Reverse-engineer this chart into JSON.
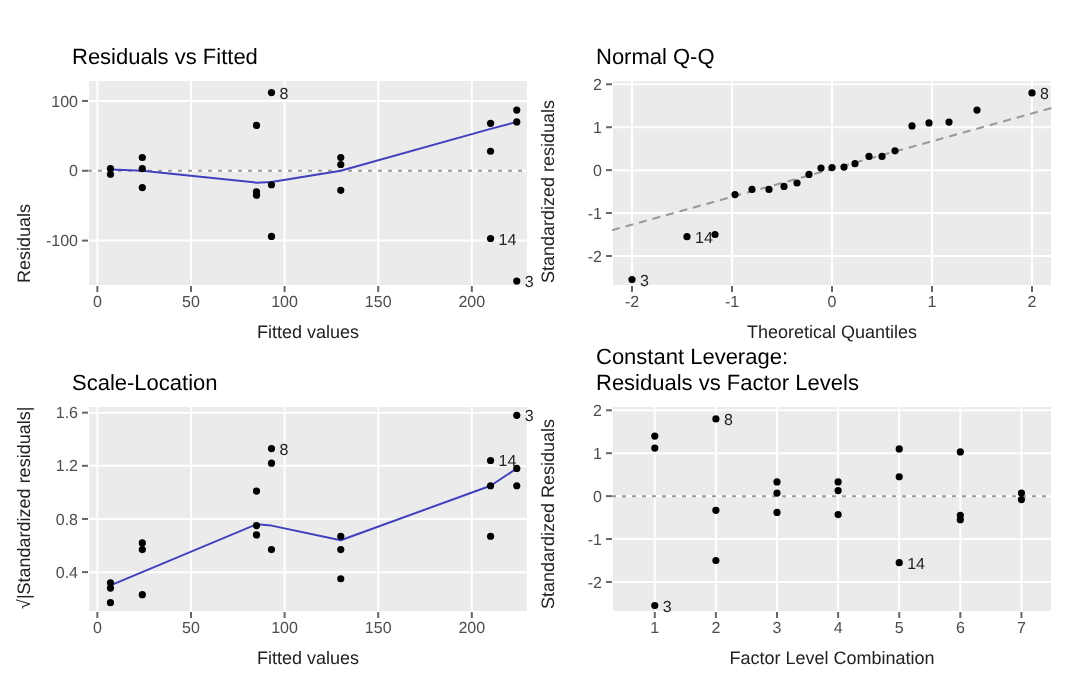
{
  "chart_data": [
    {
      "type": "scatter",
      "title": "Residuals vs Fitted",
      "xlabel": "Fitted values",
      "ylabel": "Residuals",
      "xlim": [
        -5,
        230
      ],
      "xticks": [
        0,
        50,
        100,
        150,
        200
      ],
      "ylim": [
        -165,
        130
      ],
      "yticks": [
        -100,
        0,
        100
      ],
      "grid": true,
      "series": [
        {
          "marker": "circle",
          "color": "#000000",
          "x": [
            7,
            7,
            24,
            24,
            24,
            85,
            85,
            85,
            93,
            93,
            93,
            130,
            130,
            130,
            210,
            210,
            210,
            224,
            224,
            224
          ],
          "values": [
            3,
            -5,
            19,
            3,
            -24,
            65,
            -30,
            -35,
            112,
            -20,
            -94,
            19,
            9,
            -28,
            68,
            28,
            -97,
            87,
            70,
            -158
          ]
        },
        {
          "type": "line",
          "color": "#3f3fbf",
          "x": [
            7,
            24,
            85,
            93,
            130,
            210,
            224
          ],
          "values": [
            2,
            0,
            -17,
            -16,
            0,
            60,
            70
          ]
        }
      ],
      "ref_lines": [
        {
          "axis": "y",
          "value": 0,
          "color": "#999999",
          "line_style": "dotted"
        }
      ],
      "annotations": [
        {
          "text": "8",
          "x": 93,
          "y": 112
        },
        {
          "text": "14",
          "x": 210,
          "y": -97
        },
        {
          "text": "3",
          "x": 224,
          "y": -158
        }
      ]
    },
    {
      "type": "scatter",
      "title": "Normal Q-Q",
      "xlabel": "Theoretical Quantiles",
      "ylabel": "Standardized residuals",
      "xlim": [
        -2.2,
        2.2
      ],
      "xticks": [
        -2,
        -1,
        0,
        1,
        2
      ],
      "ylim": [
        -2.7,
        2.1
      ],
      "yticks": [
        -2,
        -1,
        0,
        1,
        2
      ],
      "grid": true,
      "series": [
        {
          "marker": "circle",
          "color": "#000000",
          "x": [
            -2,
            -1.45,
            -1.17,
            -0.97,
            -0.8,
            -0.63,
            -0.48,
            -0.35,
            -0.23,
            -0.11,
            0,
            0.12,
            0.23,
            0.37,
            0.5,
            0.63,
            0.8,
            0.97,
            1.17,
            1.45,
            2
          ],
          "values": [
            -2.55,
            -1.55,
            -1.5,
            -0.57,
            -0.45,
            -0.45,
            -0.38,
            -0.3,
            -0.1,
            0.05,
            0.06,
            0.07,
            0.15,
            0.32,
            0.32,
            0.45,
            1.03,
            1.1,
            1.12,
            1.4,
            1.8
          ]
        },
        {
          "type": "line",
          "color": "#999999",
          "line_style": "dashed",
          "x": [
            -2.2,
            2.2
          ],
          "values": [
            -1.4,
            1.45
          ]
        }
      ],
      "annotations": [
        {
          "text": "3",
          "x": -2,
          "y": -2.55
        },
        {
          "text": "14",
          "x": -1.45,
          "y": -1.55
        },
        {
          "text": "8",
          "x": 2,
          "y": 1.8
        }
      ]
    },
    {
      "type": "scatter",
      "title": "Scale-Location",
      "xlabel": "Fitted values",
      "ylabel": "√|Standardized residuals|",
      "xlim": [
        -5,
        230
      ],
      "xticks": [
        0,
        50,
        100,
        150,
        200
      ],
      "ylim": [
        0.1,
        1.65
      ],
      "yticks": [
        0.4,
        0.8,
        1.2,
        1.6
      ],
      "grid": true,
      "series": [
        {
          "marker": "circle",
          "color": "#000000",
          "x": [
            7,
            7,
            7,
            24,
            24,
            24,
            85,
            85,
            85,
            93,
            93,
            93,
            130,
            130,
            130,
            210,
            210,
            210,
            224,
            224,
            224
          ],
          "values": [
            0.32,
            0.28,
            0.17,
            0.62,
            0.57,
            0.23,
            1.01,
            0.68,
            0.75,
            1.33,
            1.22,
            0.57,
            0.67,
            0.57,
            0.35,
            1.24,
            1.05,
            0.67,
            1.58,
            1.18,
            1.05
          ]
        },
        {
          "type": "line",
          "color": "#3f3fbf",
          "x": [
            7,
            85,
            93,
            130,
            210,
            224
          ],
          "values": [
            0.3,
            0.76,
            0.75,
            0.64,
            1.05,
            1.18
          ]
        }
      ],
      "annotations": [
        {
          "text": "8",
          "x": 93,
          "y": 1.33
        },
        {
          "text": "14",
          "x": 210,
          "y": 1.24
        },
        {
          "text": "3",
          "x": 224,
          "y": 1.58
        }
      ]
    },
    {
      "type": "scatter",
      "title": "Constant Leverage:\nResiduals vs Factor Levels",
      "xlabel": "Factor Level Combination",
      "ylabel": "Standardized Residuals",
      "xlim": [
        0.3,
        7.5
      ],
      "xticks": [
        1,
        2,
        3,
        4,
        5,
        6,
        7
      ],
      "ylim": [
        -2.7,
        2.1
      ],
      "yticks": [
        -2,
        -1,
        0,
        1,
        2
      ],
      "grid": true,
      "series": [
        {
          "marker": "circle",
          "color": "#000000",
          "x": [
            1,
            1,
            1,
            2,
            2,
            2,
            3,
            3,
            3,
            4,
            4,
            4,
            5,
            5,
            5,
            6,
            6,
            6,
            7,
            7
          ],
          "values": [
            1.4,
            1.12,
            -2.55,
            1.8,
            -0.33,
            -1.5,
            0.33,
            0.07,
            -0.38,
            0.33,
            0.13,
            -0.43,
            1.1,
            0.45,
            -1.55,
            1.03,
            -0.45,
            -0.55,
            0.07,
            -0.08
          ]
        }
      ],
      "ref_lines": [
        {
          "axis": "y",
          "value": 0,
          "color": "#999999",
          "line_style": "dotted"
        }
      ],
      "annotations": [
        {
          "text": "3",
          "x": 1,
          "y": -2.55
        },
        {
          "text": "8",
          "x": 2,
          "y": 1.8
        },
        {
          "text": "14",
          "x": 5,
          "y": -1.55
        }
      ]
    }
  ]
}
